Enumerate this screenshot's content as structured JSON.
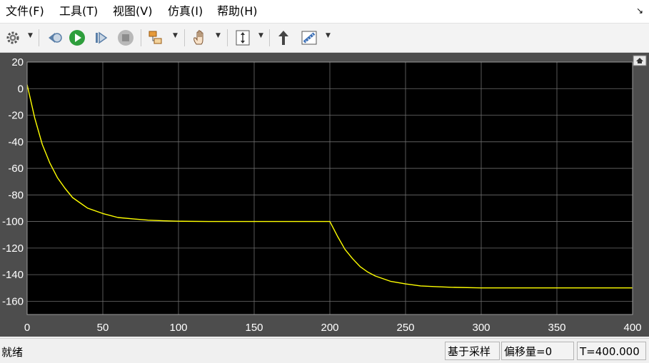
{
  "menu": {
    "items": [
      "文件(F)",
      "工具(T)",
      "视图(V)",
      "仿真(I)",
      "帮助(H)"
    ]
  },
  "toolbar": {
    "icons": [
      "gear-icon",
      "step-back-icon",
      "run-icon",
      "step-forward-icon",
      "stop-icon",
      "signal-selector-icon",
      "pan-hand-icon",
      "scale-axes-icon",
      "highlight-block-icon",
      "measurement-ruler-icon"
    ]
  },
  "colors": {
    "plot_background": "#000000",
    "figure_background": "#4d4d4d",
    "trace": "#ffff00",
    "grid": "#6e6e6e"
  },
  "chart_data": {
    "type": "line",
    "title": "",
    "xlabel": "",
    "ylabel": "",
    "xlim": [
      0,
      400
    ],
    "ylim": [
      -170,
      20
    ],
    "xticks": [
      "0",
      "50",
      "100",
      "150",
      "200",
      "250",
      "300",
      "350",
      "400"
    ],
    "yticks": [
      "20",
      "0",
      "-20",
      "-40",
      "-60",
      "-80",
      "-100",
      "-120",
      "-140",
      "-160"
    ],
    "grid": true,
    "series": [
      {
        "color": "#ffff00",
        "x": [
          0,
          5,
          10,
          15,
          20,
          25,
          30,
          35,
          40,
          50,
          60,
          70,
          80,
          90,
          100,
          120,
          140,
          160,
          180,
          200,
          205,
          210,
          215,
          220,
          225,
          230,
          240,
          250,
          260,
          270,
          280,
          300,
          320,
          340,
          360,
          380,
          400
        ],
        "y": [
          3,
          -22,
          -42,
          -56,
          -67,
          -75,
          -82,
          -86,
          -90,
          -94,
          -97,
          -98,
          -99,
          -99.5,
          -99.8,
          -100,
          -100,
          -100,
          -100,
          -100,
          -111,
          -121,
          -128,
          -134,
          -138,
          -141,
          -145,
          -147,
          -148.5,
          -149,
          -149.5,
          -150,
          -150,
          -150,
          -150,
          -150,
          -150
        ]
      }
    ]
  },
  "status": {
    "ready": "就绪",
    "sample_based": "基于采样",
    "offset": "偏移量=0",
    "time": "T=400.000"
  }
}
